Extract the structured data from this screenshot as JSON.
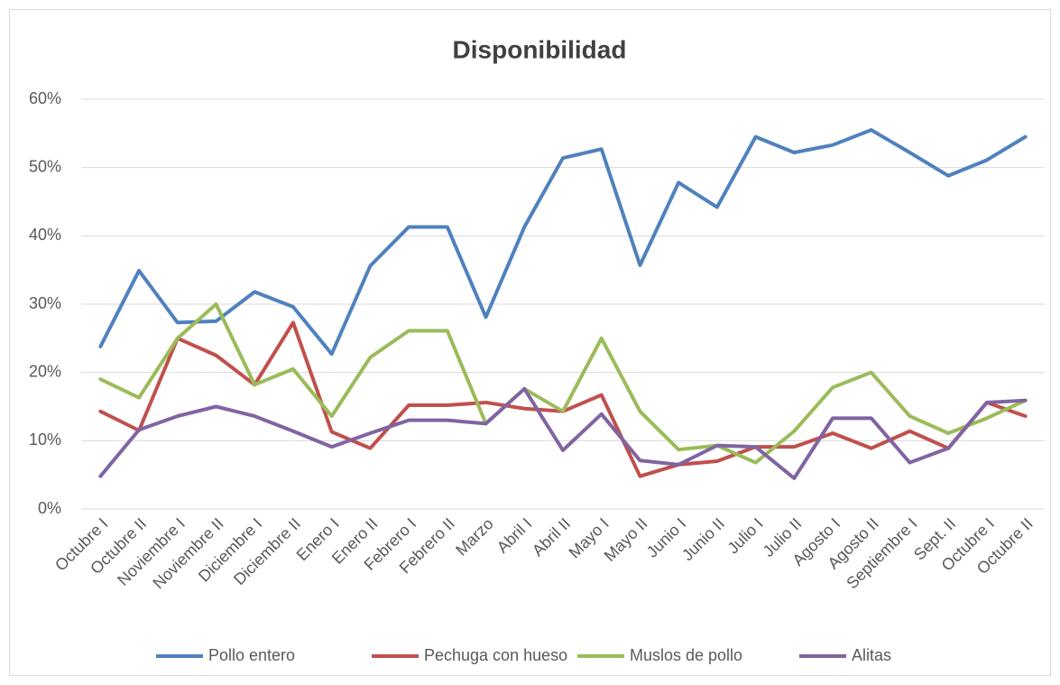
{
  "chart_data": {
    "type": "line",
    "title": "Disponibilidad",
    "categories": [
      "Octubre I",
      "Octubre II",
      "Noviembre I",
      "Noviembre II",
      "Diciembre I",
      "Diciembre II",
      "Enero I",
      "Enero II",
      "Febrero I",
      "Febrero II",
      "Marzo",
      "Abril I",
      "Abril II",
      "Mayo I",
      "Mayo II",
      "Junio I",
      "Junio II",
      "Julio I",
      "Julio II",
      "Agosto I",
      "Agosto II",
      "Septiembre I",
      "Sept. II",
      "Octubre I",
      "Octubre II"
    ],
    "series": [
      {
        "name": "Pollo entero",
        "color": "#4f81bd",
        "values": [
          23.8,
          34.9,
          27.3,
          27.5,
          31.8,
          29.6,
          22.7,
          35.6,
          41.3,
          41.3,
          28.1,
          41.3,
          51.4,
          52.7,
          35.7,
          47.8,
          44.2,
          54.5,
          52.2,
          53.3,
          55.5,
          52.2,
          48.8,
          51.1,
          54.5
        ]
      },
      {
        "name": "Pechuga con hueso",
        "color": "#c0504d",
        "values": [
          14.3,
          11.5,
          25.0,
          22.5,
          18.2,
          27.3,
          11.3,
          8.9,
          15.2,
          15.2,
          15.6,
          14.7,
          14.3,
          16.7,
          4.8,
          6.5,
          7.0,
          9.1,
          9.1,
          11.1,
          8.9,
          11.4,
          8.9,
          15.6,
          13.6
        ]
      },
      {
        "name": "Muslos de pollo",
        "color": "#9bbb59",
        "values": [
          19.0,
          16.3,
          25.0,
          30.0,
          18.2,
          20.5,
          13.6,
          22.2,
          26.1,
          26.1,
          12.5,
          17.6,
          14.3,
          25.0,
          14.3,
          8.7,
          9.3,
          6.8,
          11.4,
          17.8,
          20.0,
          13.6,
          11.1,
          13.3,
          15.9
        ]
      },
      {
        "name": "Alitas",
        "color": "#8064a2",
        "values": [
          4.8,
          11.6,
          13.6,
          15.0,
          13.6,
          11.4,
          9.1,
          11.1,
          13.0,
          13.0,
          12.5,
          17.6,
          8.6,
          13.9,
          7.1,
          6.5,
          9.3,
          9.1,
          4.5,
          13.3,
          13.3,
          6.8,
          8.9,
          15.6,
          15.9
        ]
      }
    ],
    "ylim": [
      0,
      60
    ],
    "yticks": [
      {
        "value": 0,
        "label": "0%"
      },
      {
        "value": 10,
        "label": "10%"
      },
      {
        "value": 20,
        "label": "20%"
      },
      {
        "value": 30,
        "label": "30%"
      },
      {
        "value": 40,
        "label": "40%"
      },
      {
        "value": 50,
        "label": "50%"
      },
      {
        "value": 60,
        "label": "60%"
      }
    ],
    "grid": true,
    "legend": "bottom"
  }
}
